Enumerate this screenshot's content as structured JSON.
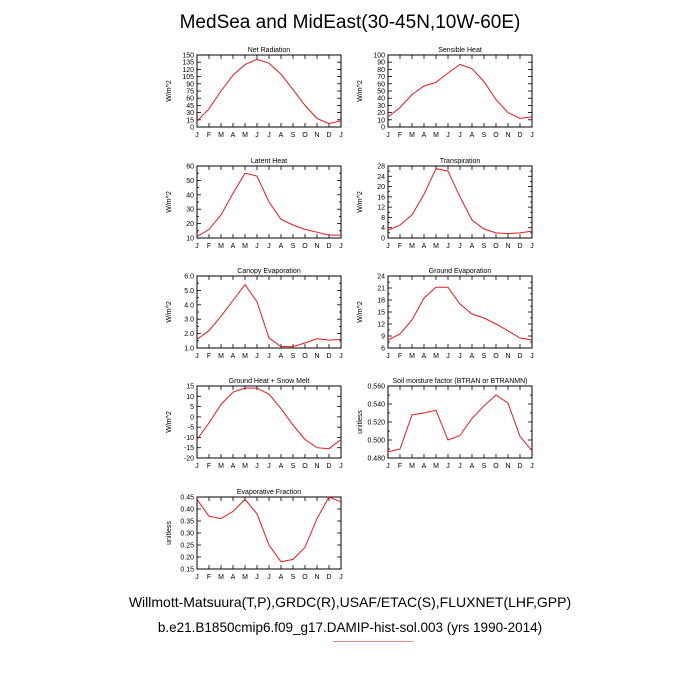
{
  "title": "MedSea and MidEast(30-45N,10W-60E)",
  "footer": {
    "line1": "Willmott-Matsuura(T,P),GRDC(R),USAF/ETAC(S),FLUXNET(LHF,GPP)",
    "line2": "b.e21.B1850cmip6.f09_g17.DAMIP-hist-sol.003 (yrs 1990-2014)"
  },
  "colors": {
    "line": "#e8191c",
    "axis": "#000000",
    "underline": "#ec8a8a"
  },
  "months": [
    "J",
    "F",
    "M",
    "A",
    "M",
    "J",
    "J",
    "A",
    "S",
    "O",
    "N",
    "D",
    "J"
  ],
  "chart_data": [
    {
      "type": "line",
      "title": "Net Radiation",
      "ylabel": "W/m^2",
      "ylim": [
        0,
        150
      ],
      "yticks": [
        0,
        15,
        30,
        45,
        60,
        75,
        90,
        105,
        120,
        135,
        150
      ],
      "yticklabels": [
        "0",
        "15",
        "30",
        "45",
        "60",
        "75",
        "90",
        "105",
        "120",
        "135",
        "150"
      ],
      "values": [
        12,
        38,
        75,
        108,
        130,
        141,
        133,
        110,
        78,
        45,
        18,
        7,
        13
      ]
    },
    {
      "type": "line",
      "title": "Sensible Heat",
      "ylabel": "W/m^2",
      "ylim": [
        0,
        100
      ],
      "yticks": [
        0,
        10,
        20,
        30,
        40,
        50,
        60,
        70,
        80,
        90,
        100
      ],
      "yticklabels": [
        "0",
        "10",
        "20",
        "30",
        "40",
        "50",
        "60",
        "70",
        "80",
        "90",
        "100"
      ],
      "values": [
        14,
        27,
        45,
        57,
        62,
        75,
        87,
        81,
        63,
        38,
        20,
        12,
        14
      ]
    },
    {
      "type": "line",
      "title": "Latent Heat",
      "ylabel": "W/m^2",
      "ylim": [
        10,
        60
      ],
      "yticks": [
        10,
        15,
        20,
        25,
        30,
        35,
        40,
        45,
        50,
        55,
        60
      ],
      "yticklabels": [
        "10",
        "",
        "20",
        "",
        "30",
        "",
        "40",
        "",
        "50",
        "",
        "60"
      ],
      "values": [
        11,
        16,
        26,
        41,
        55,
        53,
        35,
        23,
        19,
        16,
        14,
        12,
        12
      ]
    },
    {
      "type": "line",
      "title": "Transpiration",
      "ylabel": "W/m^2",
      "ylim": [
        0,
        28
      ],
      "yticks": [
        0,
        2,
        4,
        6,
        8,
        10,
        12,
        14,
        16,
        18,
        20,
        22,
        24,
        26,
        28
      ],
      "yticklabels": [
        "0",
        "",
        "4",
        "",
        "8",
        "",
        "12",
        "",
        "16",
        "",
        "20",
        "",
        "24",
        "",
        "28"
      ],
      "values": [
        3,
        5,
        9,
        17,
        27,
        26,
        16,
        7,
        3.5,
        2,
        1.7,
        2,
        2.7
      ]
    },
    {
      "type": "line",
      "title": "Canopy Evaporation",
      "ylabel": "W/m^2",
      "ylim": [
        1.0,
        6.0
      ],
      "yticks": [
        1.0,
        1.5,
        2.0,
        2.5,
        3.0,
        3.5,
        4.0,
        4.5,
        5.0,
        5.5,
        6.0
      ],
      "yticklabels": [
        "1.0",
        "",
        "2.0",
        "",
        "3.0",
        "",
        "4.0",
        "",
        "5.0",
        "",
        "6.0"
      ],
      "values": [
        1.6,
        2.2,
        3.2,
        4.3,
        5.4,
        4.2,
        1.7,
        1.1,
        1.1,
        1.35,
        1.65,
        1.55,
        1.6
      ]
    },
    {
      "type": "line",
      "title": "Ground Evaporation",
      "ylabel": "W/m^2",
      "ylim": [
        6,
        24
      ],
      "yticks": [
        6,
        7.5,
        9,
        10.5,
        12,
        13.5,
        15,
        16.5,
        18,
        19.5,
        21,
        22.5,
        24
      ],
      "yticklabels": [
        "6",
        "",
        "9",
        "",
        "12",
        "",
        "15",
        "",
        "18",
        "",
        "21",
        "",
        "24"
      ],
      "values": [
        8,
        9.5,
        13,
        18.5,
        21.2,
        21.2,
        17,
        14.5,
        13.5,
        12,
        10.3,
        8.5,
        8
      ]
    },
    {
      "type": "line",
      "title": "Ground Heat + Snow Melt",
      "ylabel": "W/m^2",
      "ylim": [
        -20,
        15
      ],
      "yticks": [
        -20,
        -15,
        -10,
        -5,
        0,
        5,
        10,
        15
      ],
      "yticklabels": [
        "-20",
        "-15",
        "-10",
        "-5",
        "0",
        "5",
        "10",
        "15"
      ],
      "values": [
        -11,
        -3,
        6,
        12,
        14,
        14,
        11,
        4,
        -4,
        -11,
        -15,
        -15.5,
        -11
      ]
    },
    {
      "type": "line",
      "title": "Soil moisture factor (BTRAN or BTRANMN)",
      "ylabel": "unitless",
      "ylim": [
        0.48,
        0.56
      ],
      "yticks": [
        0.48,
        0.49,
        0.5,
        0.51,
        0.52,
        0.53,
        0.54,
        0.55,
        0.56
      ],
      "yticklabels": [
        "0.480",
        "",
        "0.500",
        "",
        "0.520",
        "",
        "0.540",
        "",
        "0.560"
      ],
      "values": [
        0.487,
        0.49,
        0.528,
        0.53,
        0.533,
        0.5,
        0.505,
        0.524,
        0.538,
        0.55,
        0.541,
        0.504,
        0.488
      ]
    },
    {
      "type": "line",
      "title": "Evaporative Fraction",
      "ylabel": "unitless",
      "ylim": [
        0.15,
        0.45
      ],
      "yticks": [
        0.15,
        0.2,
        0.25,
        0.3,
        0.35,
        0.4,
        0.45
      ],
      "yticklabels": [
        "0.15",
        "0.20",
        "0.25",
        "0.30",
        "0.35",
        "0.40",
        "0.45"
      ],
      "values": [
        0.44,
        0.37,
        0.36,
        0.39,
        0.44,
        0.38,
        0.25,
        0.18,
        0.19,
        0.24,
        0.36,
        0.45,
        0.43
      ]
    }
  ]
}
